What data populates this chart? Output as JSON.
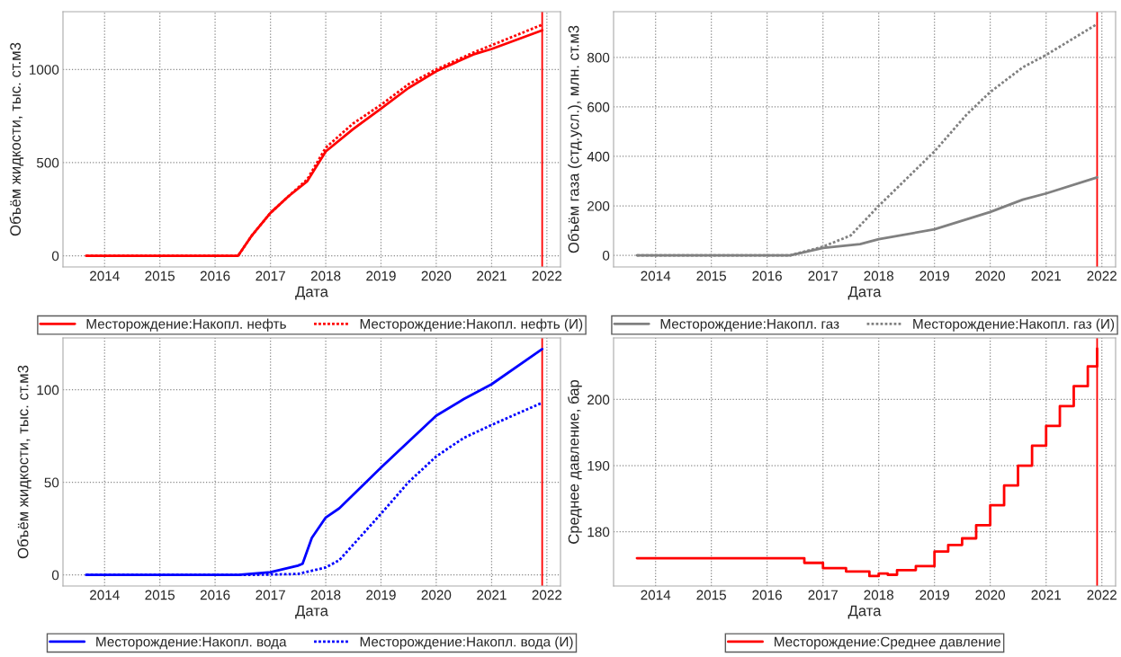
{
  "chart_data": [
    {
      "type": "line",
      "xlabel": "Дата",
      "ylabel": "Объём жидкости, тыс. ст.м3",
      "xlim": [
        "2013-04",
        "2022-04"
      ],
      "xticks": [
        "2014",
        "2015",
        "2016",
        "2017",
        "2018",
        "2019",
        "2020",
        "2021",
        "2022"
      ],
      "ylim": [
        -60,
        1310
      ],
      "yticks": [
        0,
        500,
        1000
      ],
      "grid": true,
      "legend": "bottom",
      "ref_lines": [
        {
          "axis": "x",
          "value": "2021-12",
          "color": "#ff0000"
        }
      ],
      "series": [
        {
          "name": "Месторождение:Накопл. нефть",
          "color": "#ff0000",
          "line_style": "solid",
          "x": [
            "2013-09",
            "2016-06",
            "2016-09",
            "2017-01",
            "2017-05",
            "2017-09",
            "2018-01",
            "2018-07",
            "2019-01",
            "2019-07",
            "2020-01",
            "2020-09",
            "2021-01",
            "2021-12"
          ],
          "values": [
            0,
            0,
            110,
            230,
            320,
            400,
            560,
            680,
            790,
            900,
            990,
            1080,
            1110,
            1210
          ]
        },
        {
          "name": "Месторождение:Накопл. нефть (И)",
          "color": "#ff0000",
          "line_style": "dotted",
          "x": [
            "2013-09",
            "2016-06",
            "2016-09",
            "2017-01",
            "2017-05",
            "2017-09",
            "2018-01",
            "2018-07",
            "2019-01",
            "2019-07",
            "2020-01",
            "2020-09",
            "2021-01",
            "2021-12"
          ],
          "values": [
            0,
            0,
            110,
            230,
            320,
            410,
            580,
            710,
            810,
            920,
            1000,
            1090,
            1130,
            1240
          ]
        }
      ]
    },
    {
      "type": "line",
      "xlabel": "Дата",
      "ylabel": "Объём газа (стд.усл.), млн. ст.м3",
      "xlim": [
        "2013-04",
        "2022-04"
      ],
      "xticks": [
        "2014",
        "2015",
        "2016",
        "2017",
        "2018",
        "2019",
        "2020",
        "2021",
        "2022"
      ],
      "ylim": [
        -47,
        985
      ],
      "yticks": [
        0,
        200,
        400,
        600,
        800
      ],
      "grid": true,
      "legend": "bottom",
      "ref_lines": [
        {
          "axis": "x",
          "value": "2021-12",
          "color": "#ff0000"
        }
      ],
      "series": [
        {
          "name": "Месторождение:Накопл. газ",
          "color": "#808080",
          "line_style": "solid",
          "x": [
            "2013-09",
            "2016-06",
            "2017-01",
            "2017-09",
            "2018-01",
            "2019-01",
            "2020-01",
            "2020-08",
            "2021-01",
            "2021-12"
          ],
          "values": [
            0,
            0,
            30,
            45,
            65,
            105,
            175,
            225,
            250,
            315
          ]
        },
        {
          "name": "Месторождение:Накопл. газ (И)",
          "color": "#808080",
          "line_style": "dotted",
          "x": [
            "2013-09",
            "2016-06",
            "2017-01",
            "2017-07",
            "2018-01",
            "2019-01",
            "2019-08",
            "2020-01",
            "2020-08",
            "2021-01",
            "2021-12"
          ],
          "values": [
            0,
            0,
            35,
            80,
            200,
            420,
            570,
            660,
            760,
            810,
            935
          ]
        }
      ]
    },
    {
      "type": "line",
      "xlabel": "Дата",
      "ylabel": "Объём жидкости, тыс. ст.м3",
      "xlim": [
        "2013-04",
        "2022-04"
      ],
      "xticks": [
        "2014",
        "2015",
        "2016",
        "2017",
        "2018",
        "2019",
        "2020",
        "2021",
        "2022"
      ],
      "ylim": [
        -6,
        128
      ],
      "yticks": [
        0,
        50,
        100
      ],
      "grid": true,
      "legend": "bottom",
      "ref_lines": [
        {
          "axis": "x",
          "value": "2021-12",
          "color": "#ff0000"
        }
      ],
      "series": [
        {
          "name": "Месторождение:Накопл. вода",
          "color": "#0000ff",
          "line_style": "solid",
          "x": [
            "2013-09",
            "2016-06",
            "2017-01",
            "2017-07",
            "2017-08",
            "2017-10",
            "2018-01",
            "2018-04",
            "2019-01",
            "2020-01",
            "2020-07",
            "2021-01",
            "2021-12"
          ],
          "values": [
            0,
            0,
            1.5,
            5,
            6,
            20,
            31,
            36,
            58,
            86,
            95,
            103,
            122
          ]
        },
        {
          "name": "Месторождение:Накопл. вода (И)",
          "color": "#0000ff",
          "line_style": "dotted",
          "x": [
            "2013-09",
            "2016-09",
            "2017-07",
            "2018-01",
            "2018-04",
            "2019-01",
            "2019-07",
            "2020-01",
            "2020-07",
            "2021-01",
            "2021-12"
          ],
          "values": [
            0,
            0,
            0.5,
            4,
            8,
            33,
            50,
            64,
            74,
            81,
            93
          ]
        }
      ]
    },
    {
      "type": "step",
      "xlabel": "Дата",
      "ylabel": "Среднее давление, бар",
      "xlim": [
        "2013-04",
        "2022-04"
      ],
      "xticks": [
        "2014",
        "2015",
        "2016",
        "2017",
        "2018",
        "2019",
        "2020",
        "2021",
        "2022"
      ],
      "ylim": [
        171.8,
        209.3
      ],
      "yticks": [
        180,
        190,
        200
      ],
      "grid": true,
      "legend": "bottom",
      "ref_lines": [
        {
          "axis": "x",
          "value": "2021-12",
          "color": "#ff0000"
        }
      ],
      "series": [
        {
          "name": "Месторождение:Среднее давление",
          "color": "#ff0000",
          "line_style": "solid",
          "x": [
            "2013-09",
            "2016-06",
            "2016-09",
            "2017-01",
            "2017-06",
            "2017-11",
            "2018-01",
            "2018-03",
            "2018-05",
            "2018-09",
            "2019-01",
            "2019-04",
            "2019-07",
            "2019-10",
            "2020-01",
            "2020-04",
            "2020-07",
            "2020-10",
            "2021-01",
            "2021-04",
            "2021-07",
            "2021-10",
            "2021-12"
          ],
          "values": [
            176,
            176,
            175.3,
            174.5,
            174,
            173.3,
            173.7,
            173.5,
            174.2,
            174.8,
            177,
            178,
            179,
            181,
            184,
            187,
            190,
            193,
            196,
            199,
            202,
            205,
            207.7
          ]
        }
      ]
    }
  ]
}
